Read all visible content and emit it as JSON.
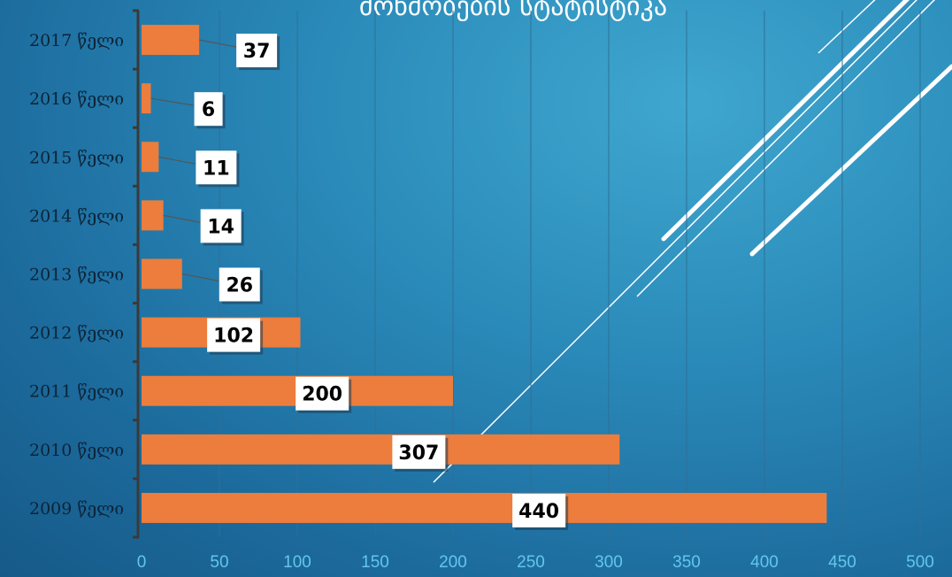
{
  "chart_data": {
    "type": "bar",
    "orientation": "horizontal",
    "title": "მოწმობების სტატისტიკა",
    "categories": [
      "2017 წელი",
      "2016 წელი",
      "2015 წელი",
      "2014 წელი",
      "2013 წელი",
      "2012 წელი",
      "2011 წელი",
      "2010 წელი",
      "2009 წელი"
    ],
    "values": [
      37,
      6,
      11,
      14,
      26,
      102,
      200,
      307,
      440
    ],
    "xlim": [
      0,
      500
    ],
    "xticks": [
      "0",
      "50",
      "100",
      "150",
      "200",
      "250",
      "300",
      "350",
      "400",
      "450",
      "500"
    ],
    "grid": "vertical",
    "data_labels": true,
    "bar_color": "#ec7d3c",
    "axis_color": "#3a3a3a",
    "tick_color": "#62c6ea"
  }
}
